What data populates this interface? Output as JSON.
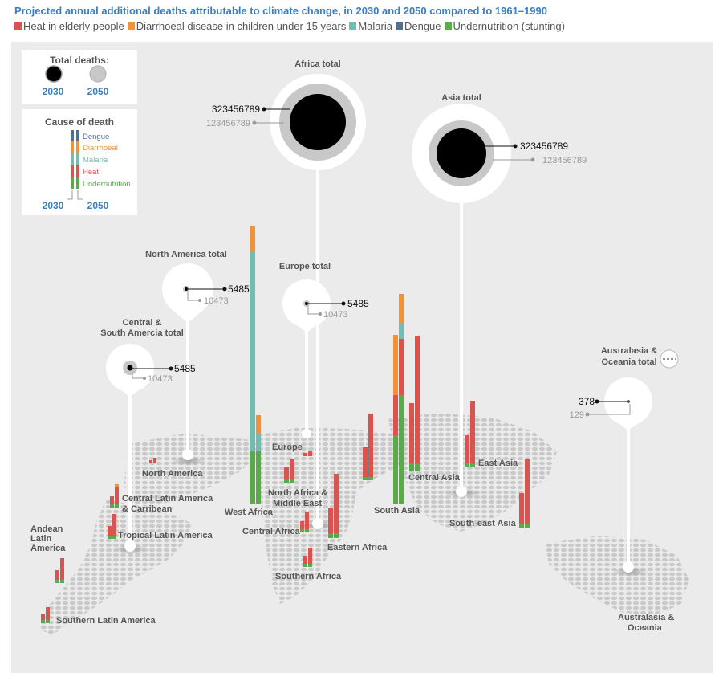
{
  "title": "Projected annual additional deaths attributable to climate change, in 2030 and 2050 compared to 1961–1990",
  "legend": [
    {
      "label": "Heat in elderly people",
      "color": "#d9534f"
    },
    {
      "label": "Diarrhoeal disease in children under 15 years",
      "color": "#f0923a"
    },
    {
      "label": "Malaria",
      "color": "#6fbdb3"
    },
    {
      "label": "Dengue",
      "color": "#4f6f95"
    },
    {
      "label": "Undernutrition (stunting)",
      "color": "#5aaa4a"
    }
  ],
  "key": {
    "total_title": "Total deaths:",
    "year_2030": "2030",
    "year_2050": "2050",
    "cause_title": "Cause of death",
    "causes": [
      "Dengue",
      "Diarrhoeal",
      "Malaria",
      "Heat",
      "Undernutrition"
    ],
    "cause_colors": [
      "#4f6f95",
      "#f0923a",
      "#6fbdb3",
      "#d9534f",
      "#5aaa4a"
    ]
  },
  "chart_data": {
    "type": "bar",
    "totals": [
      {
        "name": "Africa total",
        "v2030": "323456789",
        "v2050": "123456789"
      },
      {
        "name": "Asia total",
        "v2030": "323456789",
        "v2050": "123456789"
      },
      {
        "name": "North America total",
        "v2030": "5485",
        "v2050": "10473"
      },
      {
        "name": "Europe total",
        "v2030": "5485",
        "v2050": "10473"
      },
      {
        "name": "Central & South Amercia total",
        "v2030": "5485",
        "v2050": "10473"
      },
      {
        "name": "Australasia & Oceania total",
        "v2030": "378",
        "v2050": "129"
      }
    ],
    "regions": [
      {
        "name": "North America"
      },
      {
        "name": "Central Latin America & Carribean"
      },
      {
        "name": "Tropical Latin America"
      },
      {
        "name": "Andean Latin America"
      },
      {
        "name": "Southern Latin America"
      },
      {
        "name": "West Africa"
      },
      {
        "name": "Europe"
      },
      {
        "name": "North Africa & Middle East"
      },
      {
        "name": "Central Africa"
      },
      {
        "name": "Eastern Africa"
      },
      {
        "name": "Southern Africa"
      },
      {
        "name": "South Asia"
      },
      {
        "name": "Central Asia"
      },
      {
        "name": "East Asia"
      },
      {
        "name": "South-east Asia"
      },
      {
        "name": "Australasia & Oceania"
      }
    ]
  }
}
